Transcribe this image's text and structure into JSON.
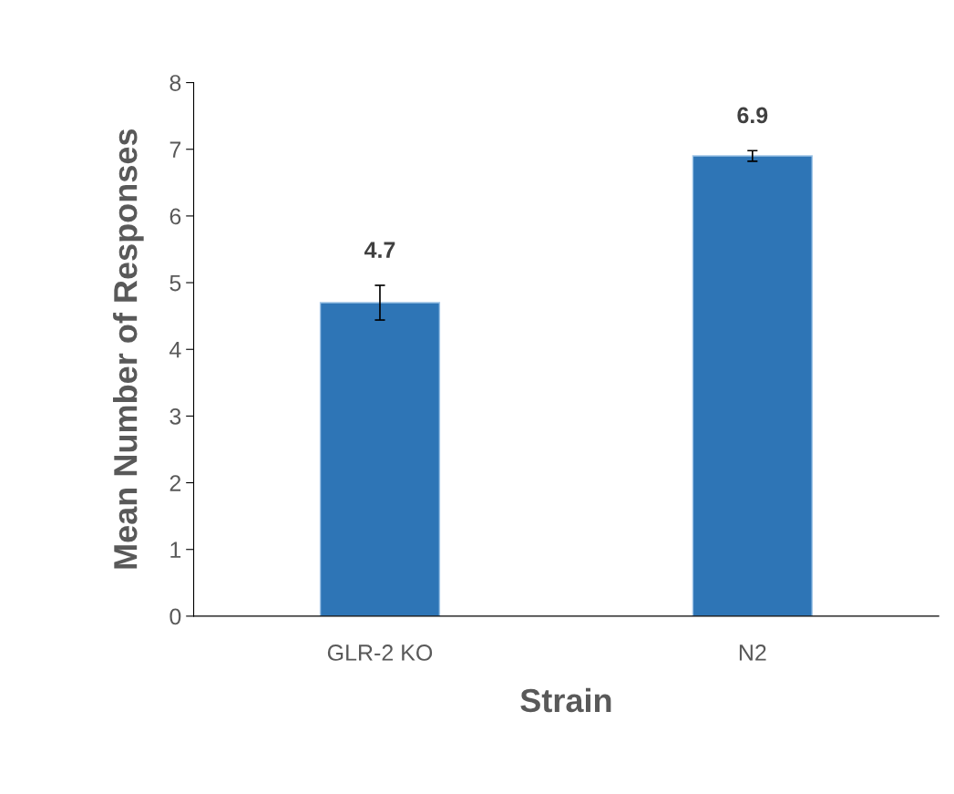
{
  "chart_data": {
    "type": "bar",
    "xlabel": "Strain",
    "ylabel": "Mean Number of Responses",
    "categories": [
      "GLR-2 KO",
      "N2"
    ],
    "values": [
      4.7,
      6.9
    ],
    "errors": [
      0.26,
      0.08
    ],
    "color": "#2e75b6",
    "data_labels": true,
    "ylim": [
      0,
      8
    ],
    "yticks": [
      0,
      1,
      2,
      3,
      4,
      5,
      6,
      7,
      8
    ],
    "grid": false
  }
}
